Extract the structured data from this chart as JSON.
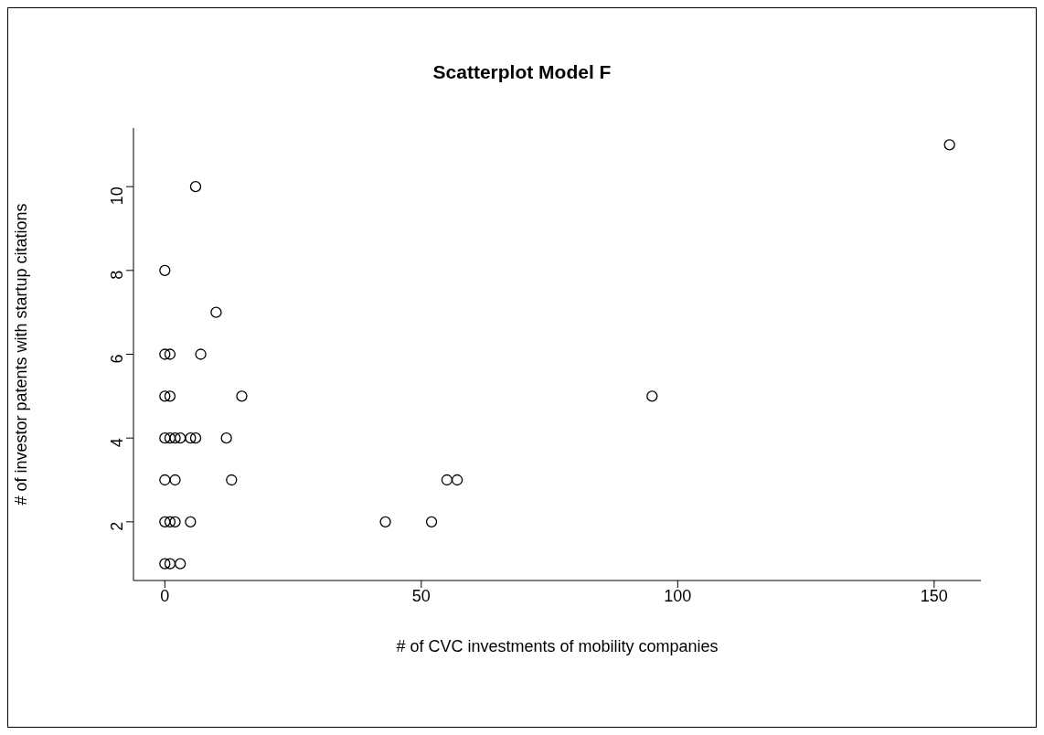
{
  "chart_data": {
    "type": "scatter",
    "title": "Scatterplot Model F",
    "xlabel": "# of CVC investments of mobility companies",
    "ylabel": "# of investor patents with startup citations",
    "x": [
      6,
      0,
      10,
      0,
      1,
      7,
      0,
      1,
      15,
      95,
      0,
      1,
      2,
      3,
      5,
      6,
      12,
      0,
      2,
      13,
      55,
      57,
      0,
      1,
      2,
      5,
      43,
      52,
      0,
      1,
      3,
      153
    ],
    "values": [
      10,
      8,
      7,
      6,
      6,
      6,
      5,
      5,
      5,
      5,
      4,
      4,
      4,
      4,
      4,
      4,
      4,
      3,
      3,
      3,
      3,
      3,
      2,
      2,
      2,
      2,
      2,
      2,
      1,
      1,
      1,
      11
    ],
    "color": "#000000",
    "marker": "circle",
    "xlim": [
      -6.12,
      159.12
    ],
    "ylim": [
      0.6,
      11.4
    ],
    "xticks": [
      0,
      50,
      100,
      150
    ],
    "yticks": [
      2,
      4,
      6,
      8,
      10
    ],
    "grid": false
  }
}
